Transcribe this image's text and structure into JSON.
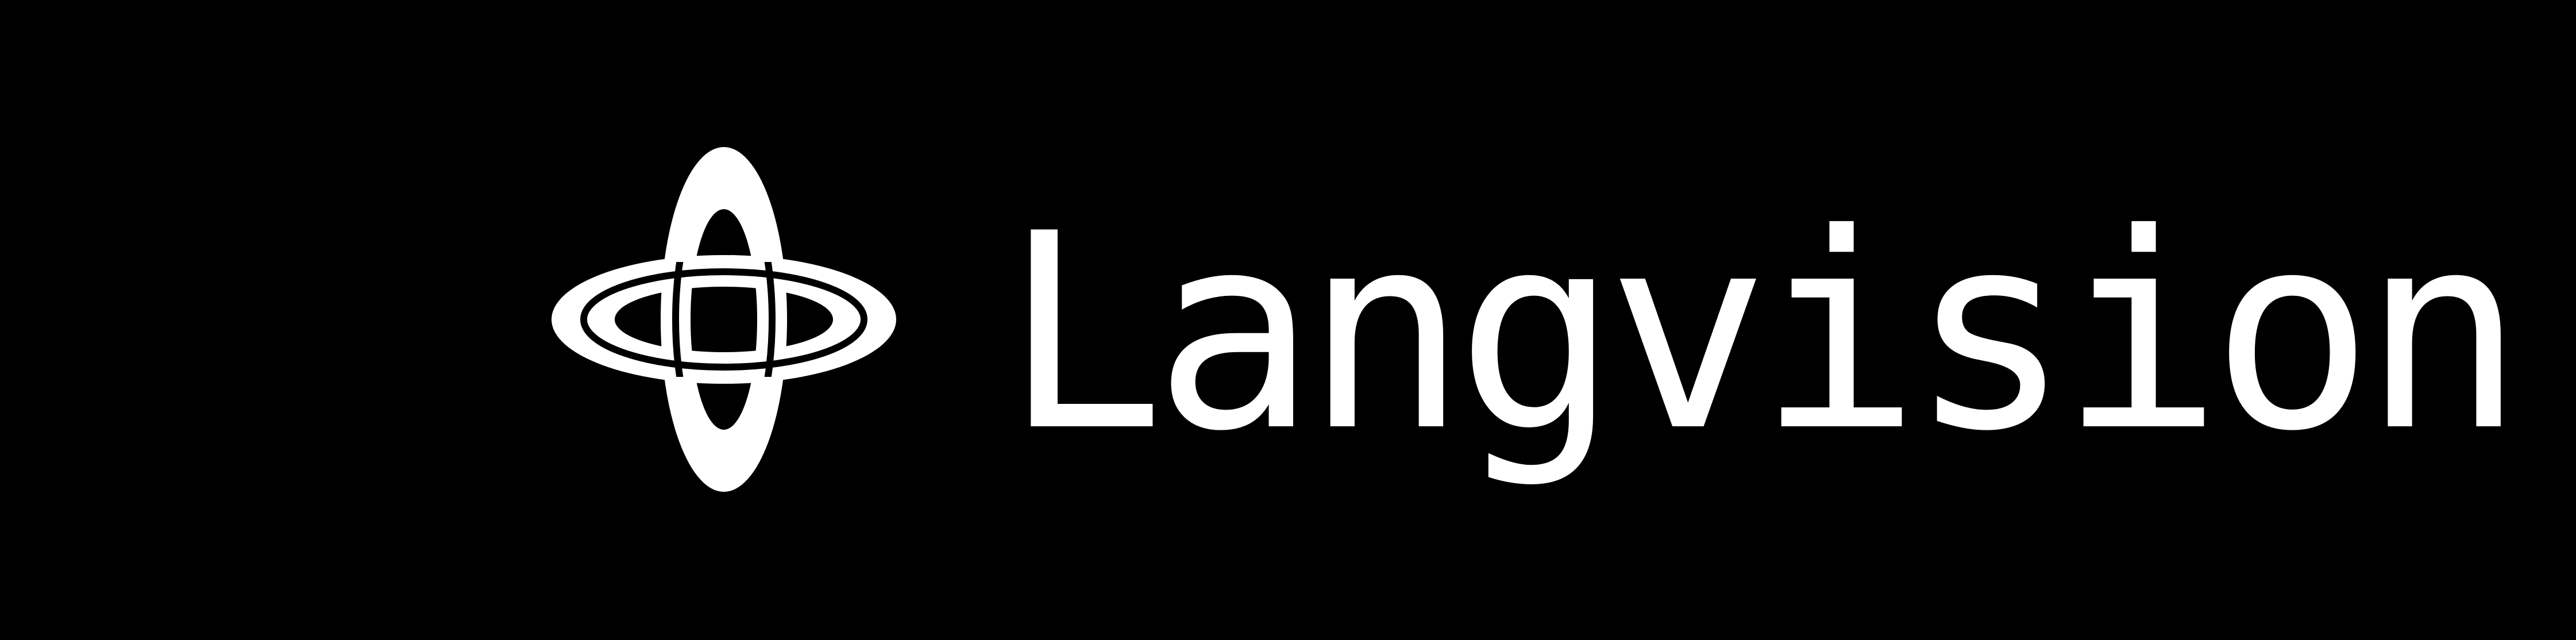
{
  "brand": {
    "name": "Langvision",
    "logo_icon": "orbital-cross-icon",
    "foreground_color": "#ffffff",
    "background_color": "#000000"
  }
}
